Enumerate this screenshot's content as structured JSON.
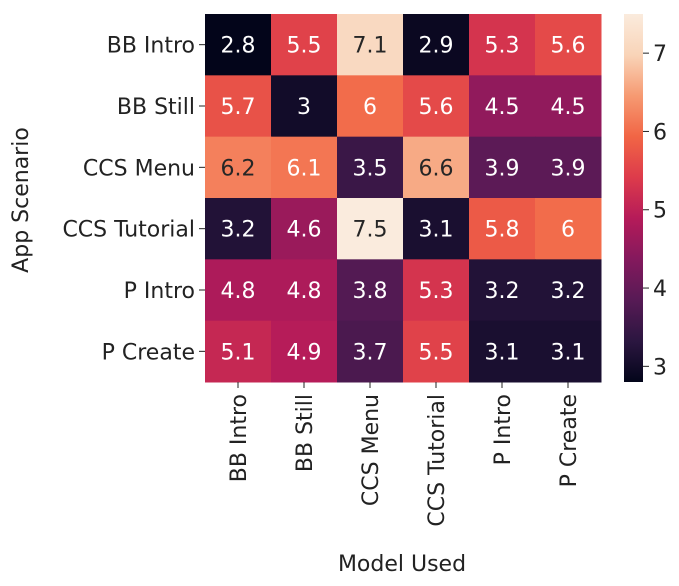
{
  "chart_data": {
    "type": "heatmap",
    "title": "",
    "xlabel": "Model Used",
    "ylabel": "App Scenario",
    "x_categories": [
      "BB Intro",
      "BB Still",
      "CCS Menu",
      "CCS Tutorial",
      "P Intro",
      "P Create"
    ],
    "y_categories": [
      "BB Intro",
      "BB Still",
      "CCS Menu",
      "CCS Tutorial",
      "P Intro",
      "P Create"
    ],
    "values": [
      [
        2.8,
        5.5,
        7.1,
        2.9,
        5.3,
        5.6
      ],
      [
        5.7,
        3,
        6,
        5.6,
        4.5,
        4.5
      ],
      [
        6.2,
        6.1,
        3.5,
        6.6,
        3.9,
        3.9
      ],
      [
        3.2,
        4.6,
        7.5,
        3.1,
        5.8,
        6
      ],
      [
        4.8,
        4.8,
        3.8,
        5.3,
        3.2,
        3.2
      ],
      [
        5.1,
        4.9,
        3.7,
        5.5,
        3.1,
        3.1
      ]
    ],
    "value_labels": [
      [
        "2.8",
        "5.5",
        "7.1",
        "2.9",
        "5.3",
        "5.6"
      ],
      [
        "5.7",
        "3",
        "6",
        "5.6",
        "4.5",
        "4.5"
      ],
      [
        "6.2",
        "6.1",
        "3.5",
        "6.6",
        "3.9",
        "3.9"
      ],
      [
        "3.2",
        "4.6",
        "7.5",
        "3.1",
        "5.8",
        "6"
      ],
      [
        "4.8",
        "4.8",
        "3.8",
        "5.3",
        "3.2",
        "3.2"
      ],
      [
        "5.1",
        "4.9",
        "3.7",
        "5.5",
        "3.1",
        "3.1"
      ]
    ],
    "colorbar": {
      "range": [
        2.8,
        7.5
      ],
      "ticks": [
        3,
        4,
        5,
        6,
        7
      ],
      "tick_labels": [
        "3",
        "4",
        "5",
        "6",
        "7"
      ],
      "colormap": "rocket"
    },
    "colors": {
      "colormap_stops": [
        "#03051a",
        "#2b1640",
        "#571a55",
        "#84195d",
        "#b51b59",
        "#dd3b4b",
        "#f16545",
        "#f69a72",
        "#f9d4b8",
        "#faebdd"
      ],
      "label_on_dark": "#ffffff",
      "label_on_light": "#262626"
    },
    "grid": false,
    "legend": "colorbar-right"
  }
}
